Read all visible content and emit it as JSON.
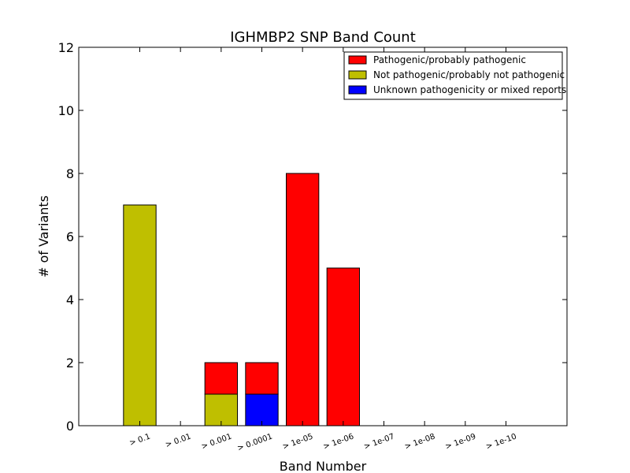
{
  "chart_data": {
    "type": "bar",
    "stacked": true,
    "title": "IGHMBP2 SNP Band Count",
    "xlabel": "Band Number",
    "ylabel": "# of Variants",
    "ylim": [
      0,
      12
    ],
    "yticks": [
      0,
      2,
      4,
      6,
      8,
      10,
      12
    ],
    "categories": [
      "> 0.1",
      "> 0.01",
      "> 0.001",
      "> 0.0001",
      "> 1e-05",
      "> 1e-06",
      "> 1e-07",
      "> 1e-08",
      "> 1e-09",
      "> 1e-10"
    ],
    "series": [
      {
        "name": "Not pathogenic/probably not pathogenic",
        "color": "#bfbf00",
        "values": [
          7,
          0,
          1,
          0,
          0,
          0,
          0,
          0,
          0,
          0
        ]
      },
      {
        "name": "Unknown pathogenicity or mixed reports",
        "color": "#0000ff",
        "values": [
          0,
          0,
          0,
          1,
          0,
          0,
          0,
          0,
          0,
          0
        ]
      },
      {
        "name": "Pathogenic/probably pathogenic",
        "color": "#ff0000",
        "values": [
          0,
          0,
          1,
          1,
          8,
          5,
          0,
          0,
          0,
          0
        ]
      }
    ],
    "legend": {
      "position": "top-right",
      "order": [
        "Pathogenic/probably pathogenic",
        "Not pathogenic/probably not pathogenic",
        "Unknown pathogenicity or mixed reports"
      ]
    },
    "grid": false
  }
}
